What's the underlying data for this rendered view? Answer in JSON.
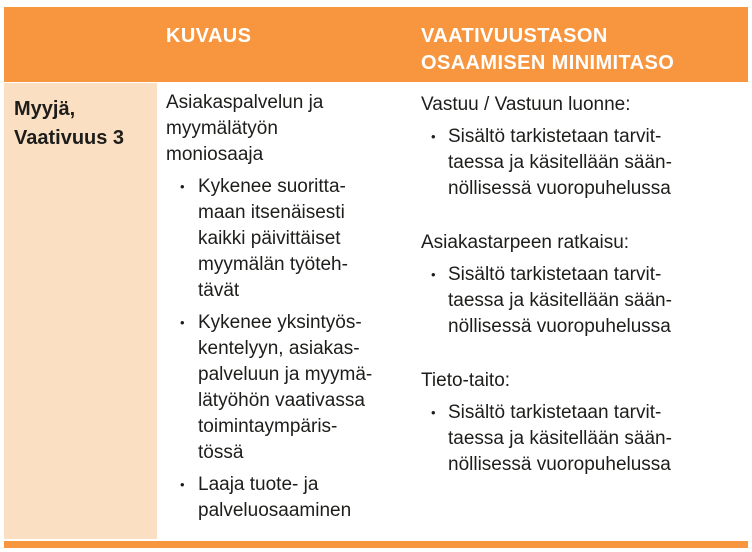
{
  "bullet_char": "•",
  "header": {
    "kuvaus": "KUVAUS",
    "minimitaso_line1": "VAATIVUUSTASON",
    "minimitaso_line2": "OSAAMISEN MINIMITASO"
  },
  "row": {
    "label": {
      "line1": "Myyjä,",
      "line2": "Vaativuus 3"
    },
    "description": {
      "intro": [
        "Asiakaspalvelun ja",
        "myymälätyön",
        "moniosaaja"
      ],
      "bullets": [
        {
          "lines": [
            "Kykenee suoritta-",
            "maan itsenäisesti",
            "kaikki päivittäiset",
            "myymälän työteh-",
            "tävät"
          ]
        },
        {
          "lines": [
            "Kykenee yksintyös-",
            "kentelyyn, asiakas-",
            "palveluun ja myymä-",
            "lätyöhön vaativassa",
            "toimintaympäris-",
            "tössä"
          ]
        },
        {
          "lines": [
            "Laaja tuote- ja",
            "palveluosaaminen"
          ]
        }
      ]
    },
    "requirements": {
      "sections": [
        {
          "heading": "Vastuu / Vastuun luonne:",
          "bullet_lines": [
            "Sisältö tarkistetaan tarvit-",
            "taessa ja käsitellään sään-",
            "nöllisessä vuoropuhelussa"
          ]
        },
        {
          "heading": "Asiakastarpeen ratkaisu:",
          "bullet_lines": [
            "Sisältö tarkistetaan tarvit-",
            "taessa ja käsitellään sään-",
            "nöllisessä vuoropuhelussa"
          ]
        },
        {
          "heading": "Tieto-taito:",
          "bullet_lines": [
            "Sisältö tarkistetaan tarvit-",
            "taessa ja käsitellään sään-",
            "nöllisessä vuoropuhelussa"
          ]
        }
      ]
    }
  },
  "colors": {
    "header_orange": "#F7963F",
    "cell_peach": "#FBDFC2",
    "text_dark": "#1D1D1B",
    "header_text": "#FFFFFF"
  }
}
